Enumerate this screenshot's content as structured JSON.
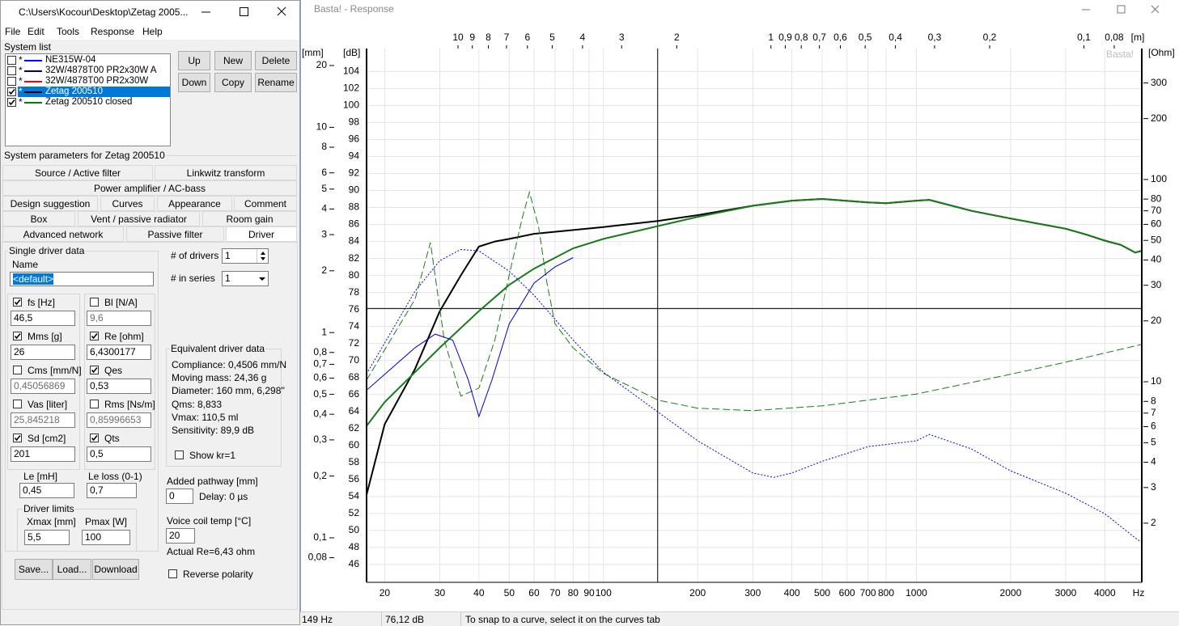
{
  "left_window": {
    "title": "C:\\Users\\Kocour\\Desktop\\Zetag 2005...",
    "menu": [
      "File",
      "Edit",
      "Tools",
      "Response",
      "Help"
    ],
    "system_list_label": "System list",
    "systems": [
      {
        "marker": "*",
        "name": "NE315W-04",
        "color": "#0000ff",
        "checked": false,
        "selected": false
      },
      {
        "marker": "*",
        "name": "32W/4878T00 PR2x30W A",
        "color": "#00008b",
        "checked": false,
        "selected": false
      },
      {
        "marker": "*",
        "name": "32W/4878T00 PR2x30W",
        "color": "#ff0000",
        "checked": false,
        "selected": false
      },
      {
        "marker": "*",
        "name": "Zetag 200510",
        "color": "#000000",
        "checked": true,
        "selected": true
      },
      {
        "marker": "*",
        "name": "Zetag 200510 closed",
        "color": "#008000",
        "checked": true,
        "selected": false
      }
    ],
    "list_buttons": [
      "Up",
      "New",
      "Delete",
      "Down",
      "Copy",
      "Rename"
    ],
    "params_label": "System parameters for Zetag 200510",
    "tabs": [
      [
        "Source / Active filter",
        "Linkwitz transform"
      ],
      [
        "Power amplifier / AC-bass"
      ],
      [
        "Design suggestion",
        "Curves",
        "Appearance",
        "Comment"
      ],
      [
        "Box",
        "Vent / passive radiator",
        "Room gain"
      ],
      [
        "Advanced network",
        "Passive filter",
        "Driver"
      ]
    ],
    "selected_tab": [
      4,
      2
    ],
    "driver": {
      "group_label": "Single driver data",
      "name_label": "Name",
      "name_value": "<default>",
      "fields": [
        {
          "label": "fs [Hz]",
          "value": "46,5",
          "checked": true
        },
        {
          "label": "Bl [N/A]",
          "value": "9,6",
          "checked": false
        },
        {
          "label": "Mms [g]",
          "value": "26",
          "checked": true
        },
        {
          "label": "Re [ohm]",
          "value": "6,4300177",
          "checked": true
        },
        {
          "label": "Cms [mm/N]",
          "value": "0,45056869",
          "checked": false
        },
        {
          "label": "Qes",
          "value": "0,53",
          "checked": true
        },
        {
          "label": "Vas [liter]",
          "value": "25,845218",
          "checked": false
        },
        {
          "label": "Rms [Ns/m]",
          "value": "0,85996653",
          "checked": false
        },
        {
          "label": "Sd [cm2]",
          "value": "201",
          "checked": true
        },
        {
          "label": "Qts",
          "value": "0,5",
          "checked": true
        }
      ],
      "le_label": "Le [mH]",
      "le_value": "0,45",
      "le_loss_label": "Le loss (0-1)",
      "le_loss_value": "0,7",
      "limits_label": "Driver limits",
      "xmax_label": "Xmax [mm]",
      "xmax_value": "5,5",
      "pmax_label": "Pmax [W]",
      "pmax_value": "100",
      "buttons": [
        "Save...",
        "Load...",
        "Download"
      ],
      "drivers_label": "# of drivers",
      "drivers_value": "1",
      "series_label": "# in series",
      "series_value": "1",
      "equivalent_label": "Equivalent driver data",
      "equivalent": [
        "Compliance: 0,4506 mm/N",
        "Moving mass: 24,36 g",
        "Diameter: 160 mm, 6,298''",
        "Qms: 8,833",
        "Vmax: 110,5 ml",
        "Sensitivity: 89,9 dB"
      ],
      "kr_label": "Show kr=1",
      "pathway_label": "Added pathway [mm]",
      "pathway_value": "0",
      "delay": "Delay: 0 µs",
      "coil_label": "Voice coil temp [°C]",
      "coil_value": "20",
      "actual_re": "Actual Re=6,43 ohm",
      "reverse_label": "Reverse polarity"
    }
  },
  "right_window": {
    "title": "Basta! - Response",
    "watermark": "Basta!"
  },
  "chart_data": {
    "type": "line",
    "y_label": "[dB]",
    "y3_label": "[mm]",
    "y2_label": "[Ohm]",
    "x2_label": "[m]",
    "x_unit": "Hz",
    "xlim": [
      17.5,
      5250
    ],
    "xlog": true,
    "xticks": [
      20,
      30,
      40,
      50,
      60,
      70,
      80,
      90,
      100,
      200,
      300,
      400,
      500,
      600,
      700,
      800,
      1000,
      2000,
      3000,
      4000
    ],
    "x2lim": [
      19.6,
      0.0653
    ],
    "x2ticks": [
      10,
      9,
      8,
      7,
      6,
      5,
      4,
      3,
      2,
      1,
      {
        "value": 0.9,
        "label": "0,9"
      },
      {
        "value": 0.8,
        "label": "0,8"
      },
      {
        "value": 0.7,
        "label": "0,7"
      },
      {
        "value": 0.6,
        "label": "0,6"
      },
      {
        "value": 0.5,
        "label": "0,5"
      },
      {
        "value": 0.4,
        "label": "0,4"
      },
      {
        "value": 0.3,
        "label": "0,3"
      },
      {
        "value": 0.2,
        "label": "0,2"
      },
      {
        "value": 0.1,
        "label": "0,1"
      },
      {
        "value": 0.08,
        "label": "0,08"
      }
    ],
    "ylim": [
      43.9,
      106.7
    ],
    "yticks": [
      46,
      48,
      50,
      52,
      54,
      56,
      58,
      60,
      62,
      64,
      66,
      68,
      70,
      72,
      74,
      76,
      78,
      80,
      82,
      84,
      86,
      88,
      90,
      92,
      94,
      96,
      98,
      100,
      102,
      104
    ],
    "y3lim": [
      0.0607,
      24.2
    ],
    "y3ticks": [
      20,
      10,
      8,
      6,
      5,
      4,
      3,
      2,
      1,
      {
        "value": 0.8,
        "label": "0,8"
      },
      {
        "value": 0.7,
        "label": "0,7"
      },
      {
        "value": 0.6,
        "label": "0,6"
      },
      {
        "value": 0.5,
        "label": "0,5"
      },
      {
        "value": 0.4,
        "label": "0,4"
      },
      {
        "value": 0.3,
        "label": "0,3"
      },
      {
        "value": 0.2,
        "label": "0,2"
      },
      {
        "value": 0.1,
        "label": "0,1"
      },
      {
        "value": 0.08,
        "label": "0,08"
      }
    ],
    "y2lim": [
      1.02,
      444
    ],
    "y2ticks": [
      300,
      200,
      100,
      80,
      70,
      60,
      50,
      40,
      30,
      20,
      10,
      8,
      7,
      6,
      5,
      4,
      3,
      2
    ],
    "grid": true,
    "cursor": {
      "x": 149,
      "y": 76.12
    },
    "series": [
      {
        "color": "#000000",
        "style": "solid",
        "width": 2,
        "x": [
          17.5,
          20,
          25,
          30,
          35,
          40,
          45,
          50,
          60,
          100,
          149,
          200,
          300,
          400,
          500,
          700,
          800,
          1000,
          1100,
          1500,
          2000,
          3000,
          3500,
          4000,
          4500,
          5000,
          5250
        ],
        "values": [
          54.2,
          62.5,
          69,
          75.8,
          80,
          83.4,
          84.0,
          84.3,
          84.9,
          85.7,
          86.4,
          87.1,
          88.2,
          88.8,
          89,
          88.6,
          88.5,
          88.8,
          88.9,
          87.6,
          86.7,
          85.5,
          84.8,
          84.1,
          83.6,
          82.7,
          82.9
        ]
      },
      {
        "color": "#1a7a1a",
        "style": "solid",
        "width": 2,
        "x": [
          17.5,
          20,
          30,
          40,
          50,
          60,
          80,
          100,
          149,
          200,
          300,
          400,
          500,
          700,
          800,
          1000,
          1100,
          1500,
          2000,
          3000,
          3500,
          4000,
          4500,
          5000,
          5250
        ],
        "values": [
          62.3,
          65.1,
          71.5,
          75.8,
          78.9,
          80.8,
          83.2,
          84.3,
          85.8,
          86.9,
          88.2,
          88.8,
          89,
          88.6,
          88.5,
          88.8,
          88.9,
          87.6,
          86.7,
          85.5,
          84.8,
          84.1,
          83.6,
          82.7,
          82.9
        ]
      },
      {
        "color": "#1a7a1a",
        "style": "dashed",
        "width": 1,
        "axis": "y2",
        "x": [
          17.5,
          25,
          28,
          31,
          35,
          40,
          45,
          50,
          55,
          58,
          62,
          66,
          70,
          80,
          100,
          150,
          200,
          300,
          500,
          1000,
          2000,
          3000,
          5250
        ],
        "values": [
          10.2,
          25.6,
          48.8,
          16.1,
          8.5,
          9.3,
          16.1,
          33.7,
          64.4,
          86.5,
          58.6,
          30.7,
          19.4,
          14.7,
          11.0,
          8.1,
          7.4,
          7.2,
          7.6,
          8.7,
          10.9,
          12.5,
          15.3
        ]
      },
      {
        "color": "#0000cc",
        "style": "solid",
        "width": 1,
        "x": [
          17.5,
          25,
          29,
          33,
          37,
          40,
          44,
          50,
          60,
          70,
          80
        ],
        "values": [
          66.5,
          71.5,
          73.1,
          72.4,
          67.7,
          63.4,
          67.7,
          74.3,
          79.1,
          81,
          82.1
        ]
      },
      {
        "color": "#0000cc",
        "style": "dotted",
        "width": 1,
        "axis": "y3",
        "x": [
          17.5,
          25,
          30,
          35,
          40,
          50,
          60,
          80,
          100,
          150,
          200,
          300,
          350,
          400,
          500,
          700,
          1000,
          1100,
          1500,
          2000,
          3000,
          4000,
          5000,
          5250
        ],
        "values": [
          0.629,
          1.59,
          2.24,
          2.54,
          2.5,
          1.99,
          1.52,
          0.92,
          0.641,
          0.408,
          0.297,
          0.207,
          0.197,
          0.207,
          0.236,
          0.278,
          0.297,
          0.319,
          0.271,
          0.212,
          0.165,
          0.131,
          0.1,
          0.095
        ]
      }
    ]
  },
  "status": {
    "freq": "149 Hz",
    "level": "76,12 dB",
    "hint": "To snap to a curve, select it on the curves tab"
  }
}
